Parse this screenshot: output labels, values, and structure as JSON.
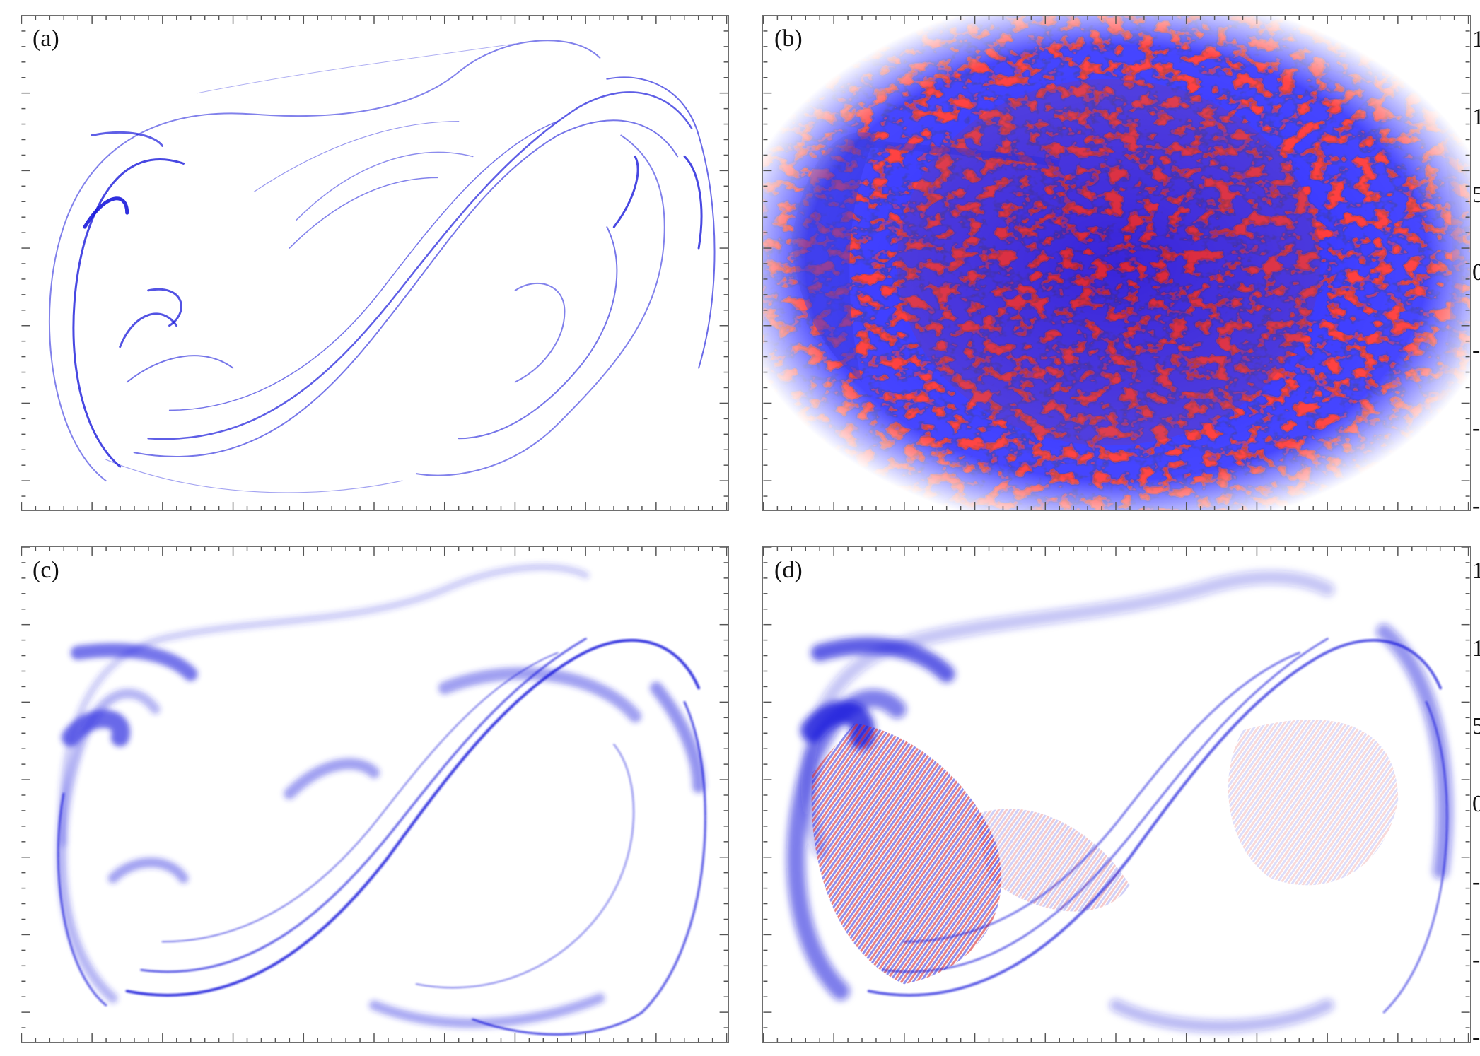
{
  "figure": {
    "panels": [
      {
        "id": "a",
        "label": "(a)",
        "style": "classical-lines",
        "color": "#1a1adb"
      },
      {
        "id": "b",
        "label": "(b)",
        "style": "quantum-speckle",
        "color_pos": "#1a1adb",
        "color_neg": "#d8262a"
      },
      {
        "id": "c",
        "label": "(c)",
        "style": "classical-smooth",
        "color": "#2b2be0"
      },
      {
        "id": "d",
        "label": "(d)",
        "style": "quantum-fringes",
        "color_pos": "#1a1adb",
        "color_neg": "#d8262a"
      }
    ],
    "right_edge_labels": {
      "b": [
        "1",
        "1",
        "5",
        "0",
        "-",
        "-",
        "-"
      ],
      "d": [
        "1",
        "1",
        "5",
        "0",
        "-",
        "-",
        "-"
      ]
    },
    "tick_color": "#555555"
  }
}
